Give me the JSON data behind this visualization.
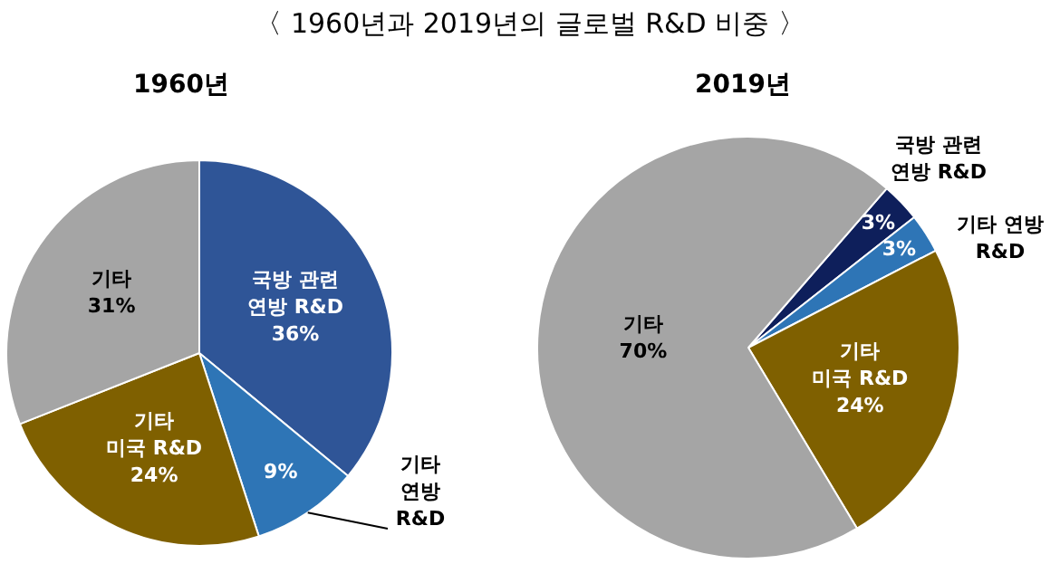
{
  "chart_data": [
    {
      "type": "pie",
      "title": "〈 1960년과 2019년의 글로벌 R&D 비중 〉",
      "subtitle": "1960년",
      "categories": [
        "국방 관련 연방 R&D",
        "기타 연방 R&D",
        "기타 미국 R&D",
        "기타"
      ],
      "values": [
        36,
        9,
        24,
        31
      ],
      "colors": [
        "#2f5597",
        "#2e75b6",
        "#7f6000",
        "#a5a5a5"
      ],
      "value_labels": [
        "36%",
        "9%",
        "24%",
        "31%"
      ]
    },
    {
      "type": "pie",
      "subtitle": "2019년",
      "categories": [
        "국방 관련 연방 R&D",
        "기타 연방 R&D",
        "기타 미국 R&D",
        "기타"
      ],
      "values": [
        3,
        3,
        24,
        70
      ],
      "colors": [
        "#0e1f5b",
        "#2e75b6",
        "#7f6000",
        "#a5a5a5"
      ],
      "value_labels": [
        "3%",
        "3%",
        "24%",
        "70%"
      ]
    }
  ]
}
